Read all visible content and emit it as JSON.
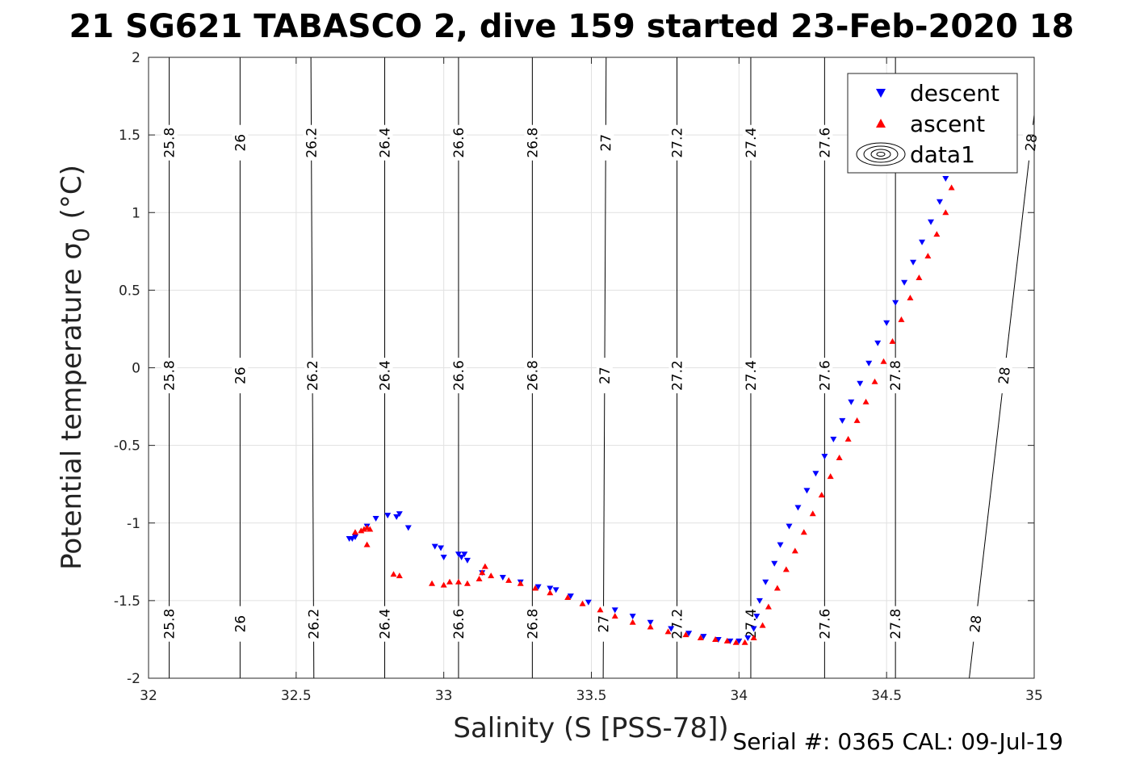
{
  "chart_data": {
    "type": "scatter",
    "title": "21 SG621 TABASCO 2, dive 159 started 23-Feb-2020 18",
    "xlabel": "Salinity (S [PSS-78])",
    "ylabel": "Potential temperature σ",
    "ylabel_sub": "0",
    "ylabel_unit": " (°C)",
    "xlim": [
      32,
      35
    ],
    "ylim": [
      -2,
      2
    ],
    "x_ticks": [
      32,
      32.5,
      33,
      33.5,
      34,
      34.5,
      35
    ],
    "x_tick_labels": [
      "32",
      "32.5",
      "33",
      "33.5",
      "34",
      "34.5",
      "35"
    ],
    "y_ticks": [
      -2,
      -1.5,
      -1,
      -0.5,
      0,
      0.5,
      1,
      1.5,
      2
    ],
    "y_tick_labels": [
      "-2",
      "-1.5",
      "-1",
      "-0.5",
      "0",
      "0.5",
      "1",
      "1.5",
      "2"
    ],
    "grid": true,
    "legend_position": "top-right",
    "footer": "Serial #: 0365  CAL: 09-Jul-19",
    "series": [
      {
        "name": "descent",
        "marker": "triangle-down",
        "color": "#0000ff",
        "x": [
          32.68,
          32.69,
          32.7,
          32.74,
          32.77,
          32.81,
          32.84,
          32.85,
          32.88,
          32.97,
          32.99,
          33.0,
          33.05,
          33.06,
          33.07,
          33.08,
          33.13,
          33.2,
          33.26,
          33.32,
          33.36,
          33.38,
          33.43,
          33.49,
          33.58,
          33.64,
          33.7,
          33.77,
          33.83,
          33.88,
          33.93,
          33.97,
          34.0,
          34.03,
          34.05,
          34.06,
          34.07,
          34.09,
          34.12,
          34.14,
          34.17,
          34.2,
          34.23,
          34.26,
          34.29,
          34.32,
          34.35,
          34.38,
          34.41,
          34.44,
          34.47,
          34.5,
          34.53,
          34.56,
          34.59,
          34.62,
          34.65,
          34.68,
          34.7
        ],
        "y": [
          -1.1,
          -1.1,
          -1.09,
          -1.02,
          -0.97,
          -0.95,
          -0.96,
          -0.94,
          -1.03,
          -1.15,
          -1.16,
          -1.22,
          -1.2,
          -1.22,
          -1.2,
          -1.24,
          -1.32,
          -1.35,
          -1.38,
          -1.41,
          -1.42,
          -1.43,
          -1.47,
          -1.51,
          -1.56,
          -1.6,
          -1.64,
          -1.68,
          -1.71,
          -1.73,
          -1.75,
          -1.76,
          -1.76,
          -1.74,
          -1.68,
          -1.6,
          -1.5,
          -1.38,
          -1.26,
          -1.14,
          -1.02,
          -0.9,
          -0.79,
          -0.68,
          -0.57,
          -0.46,
          -0.34,
          -0.22,
          -0.1,
          0.03,
          0.16,
          0.29,
          0.42,
          0.55,
          0.68,
          0.81,
          0.94,
          1.07,
          1.22
        ]
      },
      {
        "name": "ascent",
        "marker": "triangle-up",
        "color": "#ff0000",
        "x": [
          32.7,
          32.72,
          32.73,
          32.74,
          32.75,
          32.74,
          32.83,
          32.85,
          32.96,
          33.0,
          33.02,
          33.05,
          33.08,
          33.12,
          33.13,
          33.14,
          33.16,
          33.22,
          33.26,
          33.31,
          33.36,
          33.42,
          33.47,
          33.53,
          33.58,
          33.64,
          33.7,
          33.76,
          33.82,
          33.87,
          33.92,
          33.96,
          33.99,
          34.02,
          34.05,
          34.08,
          34.1,
          34.13,
          34.16,
          34.19,
          34.22,
          34.25,
          34.28,
          34.31,
          34.34,
          34.37,
          34.4,
          34.43,
          34.46,
          34.49,
          34.52,
          34.55,
          34.58,
          34.61,
          34.64,
          34.67,
          34.7,
          34.72
        ],
        "y": [
          -1.06,
          -1.05,
          -1.04,
          -1.03,
          -1.04,
          -1.14,
          -1.33,
          -1.34,
          -1.39,
          -1.4,
          -1.38,
          -1.38,
          -1.39,
          -1.36,
          -1.32,
          -1.28,
          -1.34,
          -1.37,
          -1.39,
          -1.42,
          -1.45,
          -1.48,
          -1.52,
          -1.56,
          -1.6,
          -1.64,
          -1.67,
          -1.7,
          -1.72,
          -1.74,
          -1.75,
          -1.76,
          -1.77,
          -1.77,
          -1.74,
          -1.66,
          -1.54,
          -1.42,
          -1.3,
          -1.18,
          -1.06,
          -0.94,
          -0.82,
          -0.7,
          -0.58,
          -0.46,
          -0.34,
          -0.22,
          -0.09,
          0.04,
          0.17,
          0.31,
          0.45,
          0.58,
          0.72,
          0.86,
          1.0,
          1.16
        ]
      },
      {
        "name": "data1",
        "type": "contour",
        "color": "#000000",
        "levels": [
          {
            "label": "25.8",
            "top": [
              32.07,
              2.0
            ],
            "bottom": [
              32.07,
              -2.0
            ]
          },
          {
            "label": "26",
            "top": [
              32.31,
              2.0
            ],
            "bottom": [
              32.31,
              -2.0
            ]
          },
          {
            "label": "26.2",
            "top": [
              32.55,
              2.0
            ],
            "bottom": [
              32.56,
              -2.0
            ]
          },
          {
            "label": "26.4",
            "top": [
              32.8,
              2.0
            ],
            "bottom": [
              32.8,
              -2.0
            ]
          },
          {
            "label": "26.6",
            "top": [
              33.05,
              2.0
            ],
            "bottom": [
              33.05,
              -2.0
            ]
          },
          {
            "label": "26.8",
            "top": [
              33.3,
              2.0
            ],
            "bottom": [
              33.3,
              -2.0
            ]
          },
          {
            "label": "27",
            "top": [
              33.55,
              2.0
            ],
            "bottom": [
              33.54,
              -2.0
            ]
          },
          {
            "label": "27.2",
            "top": [
              33.79,
              2.0
            ],
            "bottom": [
              33.79,
              -2.0
            ]
          },
          {
            "label": "27.4",
            "top": [
              34.04,
              2.0
            ],
            "bottom": [
              34.04,
              -2.0
            ]
          },
          {
            "label": "27.6",
            "top": [
              34.29,
              2.0
            ],
            "bottom": [
              34.29,
              -2.0
            ]
          },
          {
            "label": "27.8",
            "top": [
              34.53,
              2.0
            ],
            "bottom": [
              34.53,
              -2.0
            ]
          },
          {
            "label": "28",
            "top": [
              35.0,
              1.63
            ],
            "bottom": [
              34.78,
              -2.0
            ]
          }
        ]
      }
    ]
  }
}
